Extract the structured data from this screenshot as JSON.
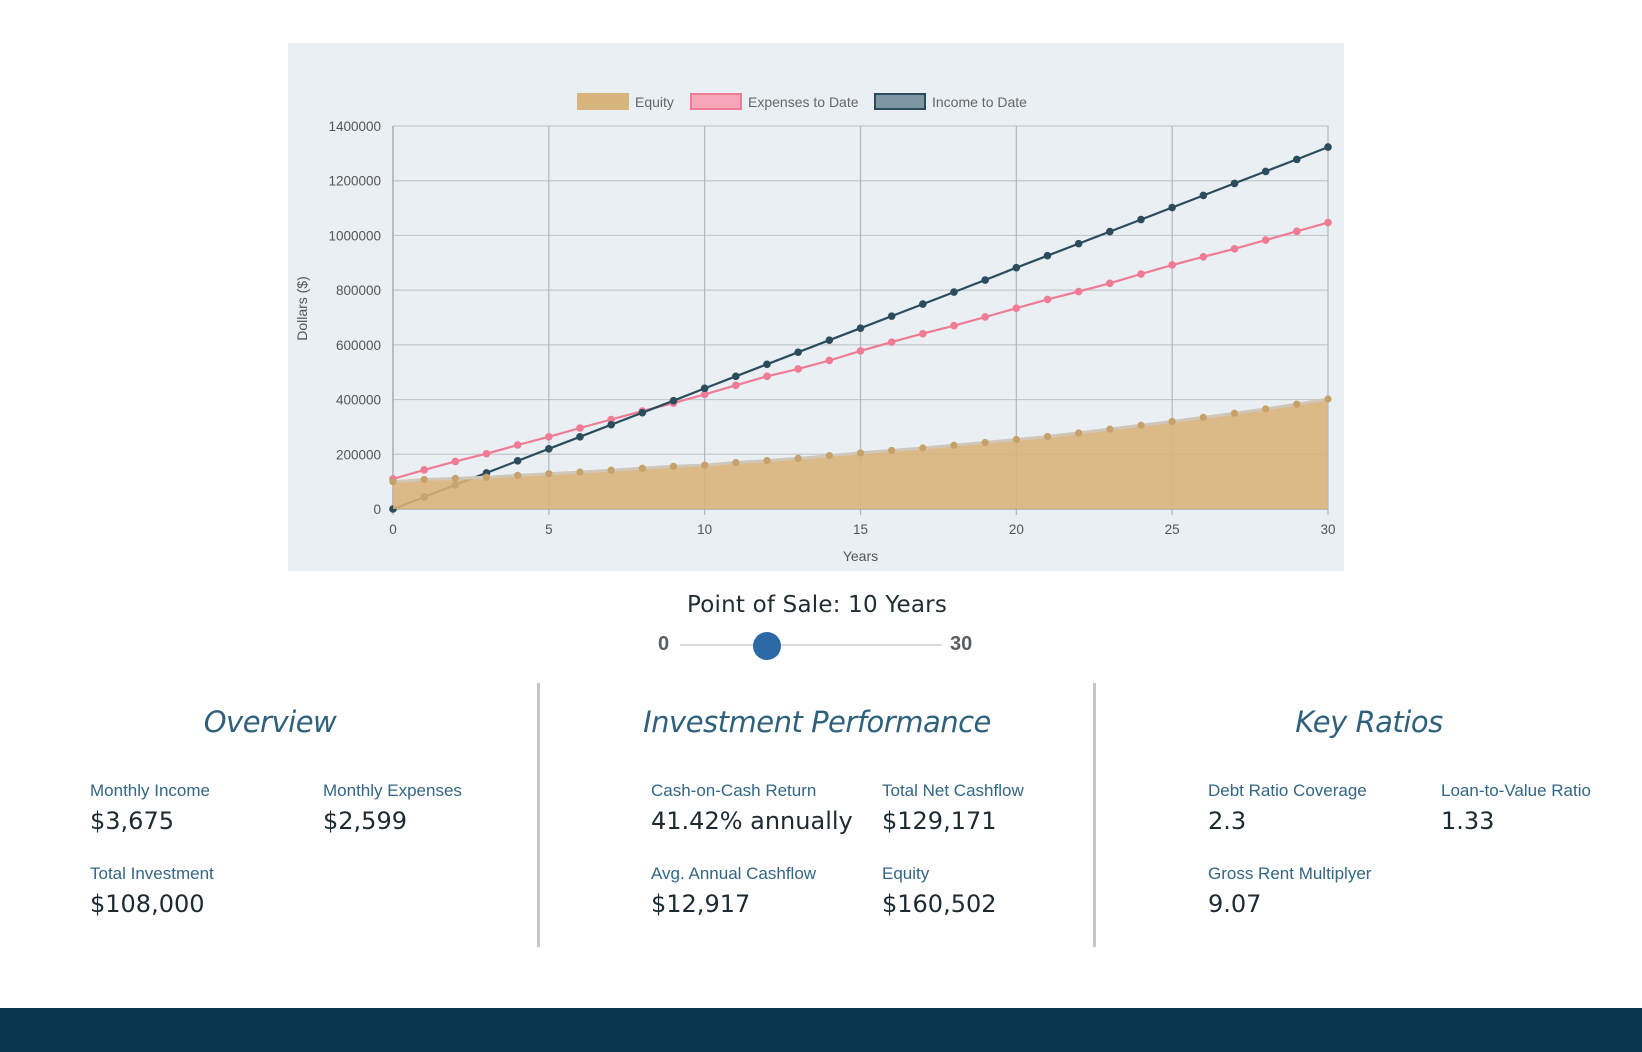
{
  "chart_data": {
    "type": "line",
    "xlabel": "Years",
    "ylabel": "Dollars ($)",
    "xlim": [
      0,
      30
    ],
    "ylim": [
      0,
      1400000
    ],
    "x_ticks": [
      0,
      5,
      10,
      15,
      20,
      25,
      30
    ],
    "y_ticks": [
      0,
      200000,
      400000,
      600000,
      800000,
      1000000,
      1200000,
      1400000
    ],
    "grid": true,
    "legend_position": "top",
    "x": [
      0,
      1,
      2,
      3,
      4,
      5,
      6,
      7,
      8,
      9,
      10,
      11,
      12,
      13,
      14,
      15,
      16,
      17,
      18,
      19,
      20,
      21,
      22,
      23,
      24,
      25,
      26,
      27,
      28,
      29,
      30
    ],
    "series": [
      {
        "name": "Equity",
        "style": "area",
        "color": "#d9b377",
        "values": [
          100000,
          108000,
          112000,
          116000,
          123000,
          129000,
          135000,
          142000,
          149000,
          156000,
          160502,
          170000,
          177000,
          185000,
          195000,
          205000,
          214000,
          223000,
          233000,
          243000,
          254000,
          265000,
          278000,
          292000,
          306000,
          320000,
          335000,
          350000,
          366000,
          383000,
          402000
        ]
      },
      {
        "name": "Expenses to Date",
        "style": "line",
        "color": "#f07b94",
        "values": [
          110000,
          143000,
          174000,
          202000,
          234000,
          264000,
          296000,
          327000,
          358000,
          387000,
          419000,
          452000,
          485000,
          512000,
          543000,
          578000,
          610000,
          641000,
          670000,
          702000,
          734000,
          766000,
          795000,
          825000,
          859000,
          892000,
          922000,
          951000,
          983000,
          1015000,
          1047000
        ]
      },
      {
        "name": "Income to Date",
        "style": "line",
        "color": "#2b4c5c",
        "values": [
          0,
          44000,
          88000,
          132000,
          176000,
          220000,
          264000,
          308000,
          352000,
          396000,
          441000,
          485000,
          529000,
          573000,
          617000,
          661000,
          705000,
          749000,
          793000,
          837000,
          882000,
          926000,
          970000,
          1014000,
          1058000,
          1102000,
          1146000,
          1190000,
          1234000,
          1278000,
          1323000
        ]
      }
    ]
  },
  "point_of_sale": {
    "title": "Point of Sale: 10 Years",
    "min": "0",
    "max": "30",
    "value": 10
  },
  "overview": {
    "title": "Overview",
    "stats": [
      {
        "label": "Monthly Income",
        "value": "$3,675"
      },
      {
        "label": "Monthly Expenses",
        "value": "$2,599"
      },
      {
        "label": "Total Investment",
        "value": "$108,000"
      }
    ]
  },
  "performance": {
    "title": "Investment Performance",
    "stats": [
      {
        "label": "Cash-on-Cash Return",
        "value": "41.42% annually"
      },
      {
        "label": "Total Net Cashflow",
        "value": "$129,171"
      },
      {
        "label": "Avg. Annual Cashflow",
        "value": "$12,917"
      },
      {
        "label": "Equity",
        "value": "$160,502"
      }
    ]
  },
  "ratios": {
    "title": "Key Ratios",
    "stats": [
      {
        "label": "Debt Ratio Coverage",
        "value": "2.3"
      },
      {
        "label": "Loan-to-Value Ratio",
        "value": "1.33"
      },
      {
        "label": "Gross Rent Multiplyer",
        "value": "9.07"
      }
    ]
  }
}
